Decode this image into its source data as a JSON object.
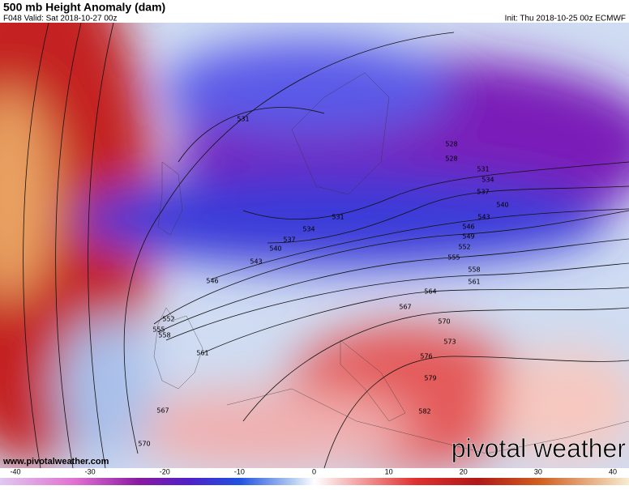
{
  "header": {
    "title": "500 mb Height Anomaly (dam)",
    "valid": "F048 Valid: Sat 2018-10-27 00z",
    "init": "Init: Thu 2018-10-25 00z ECMWF"
  },
  "map": {
    "contour_labels": [
      531,
      528,
      528,
      531,
      534,
      537,
      540,
      543,
      546,
      549,
      552,
      555,
      558,
      561,
      564,
      567,
      570,
      573,
      576,
      579,
      582,
      531,
      534,
      537,
      540,
      543,
      546,
      552,
      555,
      558,
      561,
      567,
      570
    ]
  },
  "footer": {
    "url": "www.pivotalweather.com",
    "brand": "pivotal weather"
  },
  "colorbar": {
    "range": [
      -40,
      40
    ],
    "ticks": [
      -40,
      -30,
      -20,
      -10,
      0,
      10,
      20,
      30,
      40
    ]
  }
}
